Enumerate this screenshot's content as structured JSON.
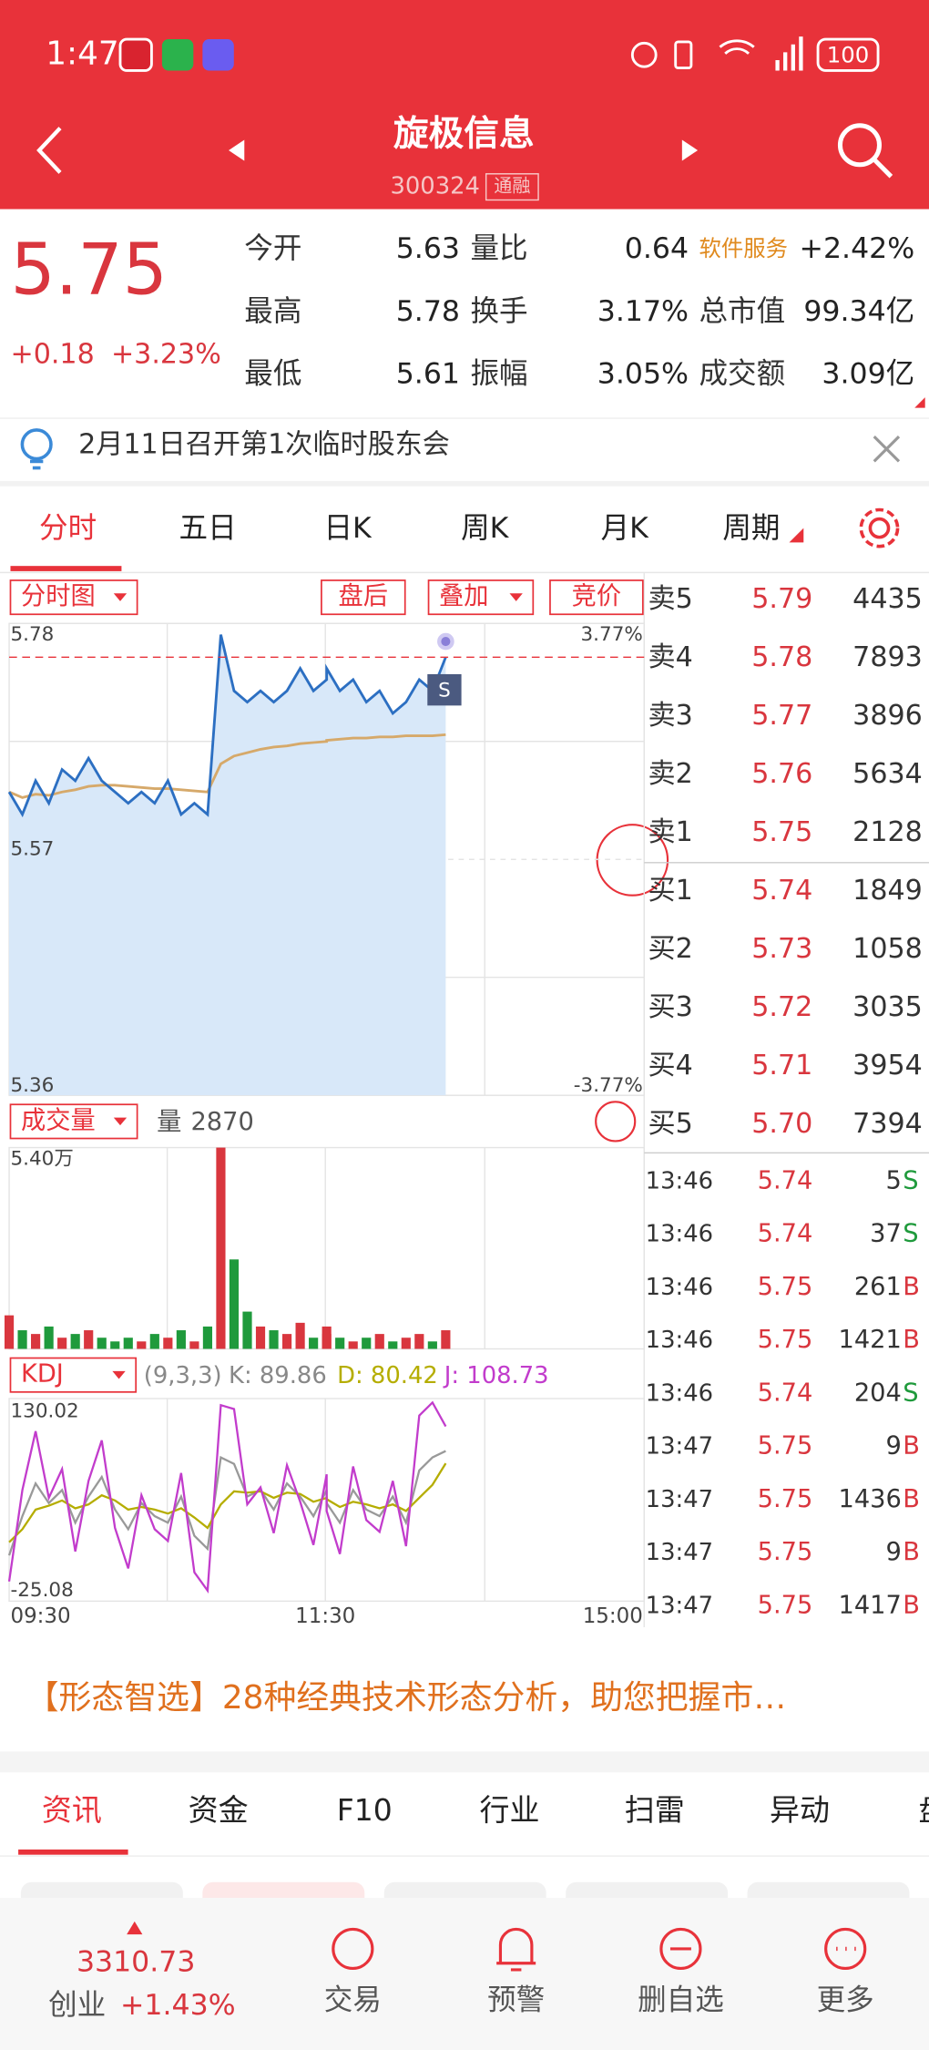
{
  "status": {
    "time": "1:47",
    "battery": "100"
  },
  "header": {
    "name": "旋极信息",
    "code": "300324",
    "badge": "通融"
  },
  "quote": {
    "price": "5.75",
    "change": "+0.18",
    "change_pct": "+3.23%",
    "rows": [
      [
        {
          "label": "今开",
          "value": "5.63"
        },
        {
          "label": "量比",
          "value": "0.64"
        },
        {
          "label": "软件服务",
          "value": "+2.42%"
        }
      ],
      [
        {
          "label": "最高",
          "value": "5.78"
        },
        {
          "label": "换手",
          "value": "3.17%"
        },
        {
          "label": "总市值",
          "value": "99.34亿"
        }
      ],
      [
        {
          "label": "最低",
          "value": "5.61"
        },
        {
          "label": "振幅",
          "value": "3.05%"
        },
        {
          "label": "成交额",
          "value": "3.09亿"
        }
      ]
    ]
  },
  "notice": "2月11日召开第1次临时股东会",
  "tabs": [
    "分时",
    "五日",
    "日K",
    "周K",
    "月K",
    "周期"
  ],
  "intraday": {
    "controls": [
      "分时图",
      "盘后",
      "叠加",
      "竞价"
    ],
    "ylim": [
      5.36,
      5.78
    ],
    "yticks": [
      5.78,
      5.57,
      5.36
    ],
    "pct_labels": [
      "3.77%",
      "-3.77%"
    ],
    "signal": "S",
    "xtick_labels": [
      "09:30",
      "11:30",
      "15:00"
    ],
    "times": [
      "09:30",
      "09:35",
      "09:40",
      "09:45",
      "09:50",
      "09:55",
      "10:00",
      "10:05",
      "10:10",
      "10:15",
      "10:20",
      "10:25",
      "10:30",
      "10:35",
      "10:40",
      "10:45",
      "10:50",
      "10:55",
      "11:00",
      "11:05",
      "11:10",
      "11:15",
      "11:20",
      "11:25",
      "11:30",
      "13:00",
      "13:05",
      "13:10",
      "13:15",
      "13:20",
      "13:25",
      "13:30",
      "13:35",
      "13:40",
      "13:45"
    ],
    "price": [
      5.63,
      5.61,
      5.64,
      5.62,
      5.65,
      5.64,
      5.66,
      5.64,
      5.63,
      5.62,
      5.63,
      5.62,
      5.64,
      5.61,
      5.62,
      5.61,
      5.77,
      5.72,
      5.71,
      5.72,
      5.71,
      5.72,
      5.74,
      5.72,
      5.73,
      5.74,
      5.72,
      5.73,
      5.71,
      5.72,
      5.7,
      5.71,
      5.73,
      5.72,
      5.75
    ],
    "avg": [
      5.63,
      5.625,
      5.628,
      5.627,
      5.63,
      5.632,
      5.635,
      5.636,
      5.636,
      5.635,
      5.634,
      5.633,
      5.633,
      5.632,
      5.631,
      5.63,
      5.655,
      5.662,
      5.665,
      5.668,
      5.67,
      5.671,
      5.673,
      5.674,
      5.675,
      5.676,
      5.677,
      5.678,
      5.678,
      5.679,
      5.679,
      5.68,
      5.68,
      5.68,
      5.681
    ]
  },
  "volume": {
    "selector": "成交量",
    "label": "量",
    "value": "2870",
    "max_label": "5.40万",
    "ylim": [
      0,
      54000
    ],
    "values": [
      9000,
      5000,
      4000,
      6000,
      3000,
      4000,
      5000,
      3000,
      2000,
      3000,
      2000,
      4000,
      3000,
      5000,
      2000,
      6000,
      54000,
      24000,
      10000,
      6000,
      5000,
      4000,
      7000,
      3000,
      4000,
      6000,
      3000,
      2000,
      3000,
      4000,
      2000,
      3000,
      4000,
      2000,
      5000
    ]
  },
  "kdj": {
    "selector": "KDJ",
    "params": "(9,3,3)",
    "k_label": "K: 89.86",
    "d_label": "D: 80.42",
    "j_label": "J: 108.73",
    "ylim": [
      -25.08,
      130.02
    ],
    "ytick_labels": [
      "130.02",
      "-25.08"
    ],
    "k": [
      10,
      40,
      65,
      50,
      60,
      35,
      55,
      70,
      45,
      30,
      50,
      40,
      35,
      55,
      25,
      15,
      85,
      80,
      55,
      60,
      45,
      65,
      55,
      40,
      60,
      50,
      35,
      60,
      45,
      40,
      55,
      35,
      75,
      85,
      89.86
    ],
    "d": [
      20,
      30,
      45,
      48,
      52,
      46,
      49,
      56,
      52,
      45,
      47,
      45,
      42,
      46,
      39,
      31,
      49,
      59,
      58,
      59,
      54,
      58,
      57,
      51,
      54,
      53,
      47,
      51,
      49,
      46,
      49,
      44,
      54,
      64,
      80.42
    ],
    "j": [
      -10,
      60,
      105,
      54,
      76,
      13,
      67,
      98,
      31,
      0,
      56,
      30,
      21,
      73,
      -3,
      -17,
      125,
      122,
      49,
      62,
      27,
      79,
      51,
      18,
      72,
      44,
      11,
      78,
      37,
      28,
      67,
      17,
      117,
      127,
      108.73
    ]
  },
  "order_book": {
    "asks": [
      {
        "label": "卖5",
        "price": "5.79",
        "volume": "4435"
      },
      {
        "label": "卖4",
        "price": "5.78",
        "volume": "7893"
      },
      {
        "label": "卖3",
        "price": "5.77",
        "volume": "3896"
      },
      {
        "label": "卖2",
        "price": "5.76",
        "volume": "5634"
      },
      {
        "label": "卖1",
        "price": "5.75",
        "volume": "2128"
      }
    ],
    "bids": [
      {
        "label": "买1",
        "price": "5.74",
        "volume": "1849"
      },
      {
        "label": "买2",
        "price": "5.73",
        "volume": "1058"
      },
      {
        "label": "买3",
        "price": "5.72",
        "volume": "3035"
      },
      {
        "label": "买4",
        "price": "5.71",
        "volume": "3954"
      },
      {
        "label": "买5",
        "price": "5.70",
        "volume": "7394"
      }
    ]
  },
  "trades": [
    {
      "time": "13:46",
      "price": "5.74",
      "volume": "5",
      "side": "S"
    },
    {
      "time": "13:46",
      "price": "5.74",
      "volume": "37",
      "side": "S"
    },
    {
      "time": "13:46",
      "price": "5.75",
      "volume": "261",
      "side": "B"
    },
    {
      "time": "13:46",
      "price": "5.75",
      "volume": "1421",
      "side": "B"
    },
    {
      "time": "13:46",
      "price": "5.74",
      "volume": "204",
      "side": "S"
    },
    {
      "time": "13:47",
      "price": "5.75",
      "volume": "9",
      "side": "B"
    },
    {
      "time": "13:47",
      "price": "5.75",
      "volume": "1436",
      "side": "B"
    },
    {
      "time": "13:47",
      "price": "5.75",
      "volume": "9",
      "side": "B"
    },
    {
      "time": "13:47",
      "price": "5.75",
      "volume": "1417",
      "side": "B"
    }
  ],
  "banner": "【形态智选】28种经典技术形态分析，助您把握市…",
  "info_tabs": [
    "资讯",
    "资金",
    "F10",
    "行业",
    "扫雷",
    "异动",
    "盘"
  ],
  "bottom_nav": {
    "index_value": "3310.73",
    "index_name": "创业",
    "index_change": "+1.43%",
    "items": [
      "交易",
      "预警",
      "删自选",
      "更多"
    ]
  }
}
